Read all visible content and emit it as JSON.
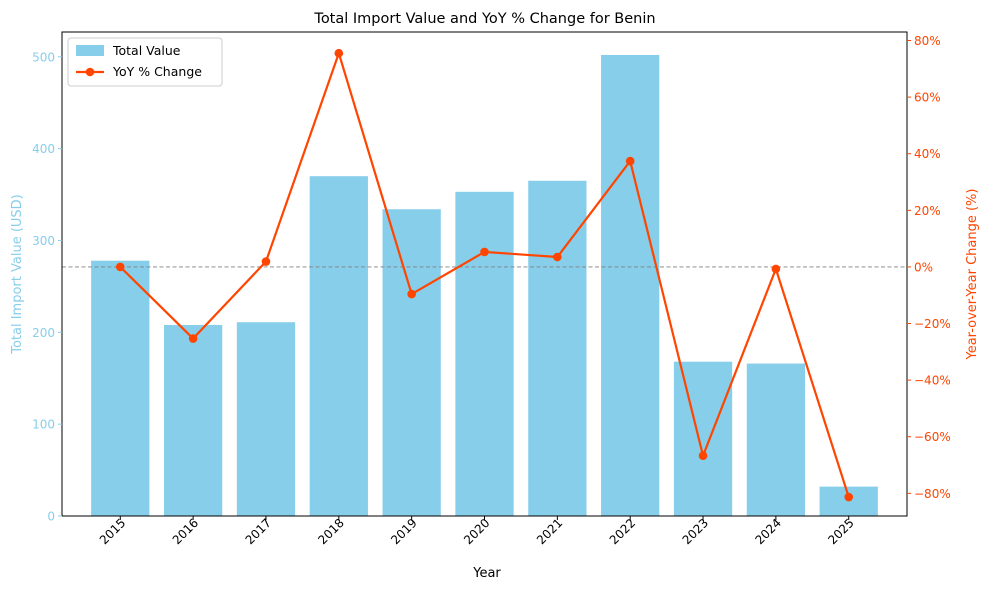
{
  "chart_data": {
    "type": "bar",
    "title": "Total Import Value and YoY % Change for Benin",
    "xlabel": "Year",
    "ylabel": "Total Import Value (USD)",
    "y2label": "Year-over-Year Change (%)",
    "categories": [
      "2015",
      "2016",
      "2017",
      "2018",
      "2019",
      "2020",
      "2021",
      "2022",
      "2023",
      "2024",
      "2025"
    ],
    "ylim": [
      0,
      527
    ],
    "y2lim": [
      -88,
      83
    ],
    "yticks": [
      0,
      100,
      200,
      300,
      400,
      500
    ],
    "y2ticks": [
      -80,
      -60,
      -40,
      -20,
      0,
      20,
      40,
      60,
      80
    ],
    "y2tick_labels": [
      "−80%",
      "−60%",
      "−40%",
      "−20%",
      "0%",
      "20%",
      "40%",
      "60%",
      "80%"
    ],
    "series": [
      {
        "name": "Total Value",
        "kind": "bar",
        "axis": "left",
        "color": "#87CEEB",
        "values": [
          278,
          208,
          211,
          370,
          334,
          353,
          365,
          502,
          168,
          166,
          32
        ]
      },
      {
        "name": "YoY % Change",
        "kind": "line",
        "axis": "right",
        "color": "#FF4500",
        "values": [
          0,
          -25.3,
          1.9,
          75.5,
          -9.6,
          5.3,
          3.5,
          37.4,
          -66.7,
          -0.7,
          -81.3
        ]
      }
    ],
    "reference_line": {
      "axis": "right",
      "value": 0,
      "style": "dashed",
      "color": "#808080"
    },
    "legend_position": "top-left"
  }
}
